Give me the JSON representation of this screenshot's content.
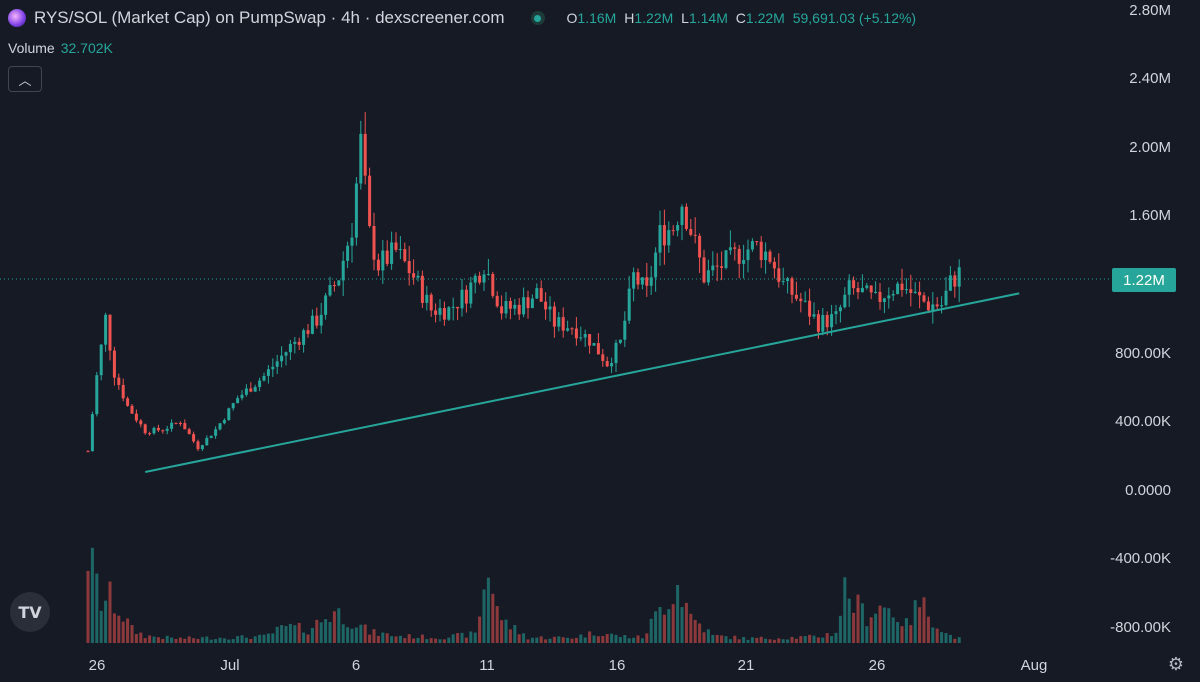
{
  "header": {
    "title": "RYS/SOL (Market Cap) on PumpSwap · 4h · dexscreener.com",
    "ohlc": [
      {
        "key": "O",
        "value": "1.16M"
      },
      {
        "key": "H",
        "value": "1.22M"
      },
      {
        "key": "L",
        "value": "1.14M"
      },
      {
        "key": "C",
        "value": "1.22M"
      }
    ],
    "change": "59,691.03 (+5.12%)"
  },
  "volume": {
    "label": "Volume",
    "value": "32.702K"
  },
  "icons": {
    "symbol": "rys-token-icon",
    "status": "live-dot-icon",
    "collapse": "chevron-up-icon",
    "logo": "tradingview-logo-icon",
    "settings": "gear-icon"
  },
  "colors": {
    "background": "#161a25",
    "up": "#26a69a",
    "down": "#ef5350",
    "trendline": "#26a69a",
    "price_tag": "#26a69a"
  },
  "chart_data": {
    "type": "candlestick",
    "interval": "4h",
    "y_axis": {
      "ticks": [
        "2.80M",
        "2.40M",
        "2.00M",
        "1.60M",
        "1.22M",
        "800.00K",
        "400.00K",
        "0.0000",
        "-400.00K",
        "-800.00K"
      ],
      "min": -900000,
      "max": 2800000
    },
    "x_axis": {
      "ticks": [
        "26",
        "Jul",
        "6",
        "11",
        "16",
        "21",
        "26",
        "Aug"
      ]
    },
    "last_price_label": "1.22M",
    "last_price": 1220000,
    "price_path": [
      [
        0,
        150000
      ],
      [
        2,
        600000
      ],
      [
        4,
        950000
      ],
      [
        6,
        620000
      ],
      [
        9,
        420000
      ],
      [
        13,
        270000
      ],
      [
        17,
        280000
      ],
      [
        21,
        330000
      ],
      [
        25,
        170000
      ],
      [
        29,
        280000
      ],
      [
        34,
        470000
      ],
      [
        40,
        600000
      ],
      [
        46,
        780000
      ],
      [
        52,
        940000
      ],
      [
        57,
        1200000
      ],
      [
        60,
        1500000
      ],
      [
        62,
        2000000
      ],
      [
        64,
        1450000
      ],
      [
        66,
        1270000
      ],
      [
        70,
        1350000
      ],
      [
        74,
        1200000
      ],
      [
        78,
        1000000
      ],
      [
        82,
        1000000
      ],
      [
        86,
        1100000
      ],
      [
        90,
        1280000
      ],
      [
        94,
        1000000
      ],
      [
        98,
        1020000
      ],
      [
        102,
        1100000
      ],
      [
        106,
        920000
      ],
      [
        110,
        900000
      ],
      [
        114,
        820000
      ],
      [
        118,
        680000
      ],
      [
        121,
        800000
      ],
      [
        124,
        1200000
      ],
      [
        127,
        1100000
      ],
      [
        130,
        1450000
      ],
      [
        133,
        1500000
      ],
      [
        135,
        1650000
      ],
      [
        137,
        1480000
      ],
      [
        140,
        1200000
      ],
      [
        143,
        1250000
      ],
      [
        146,
        1300000
      ],
      [
        149,
        1360000
      ],
      [
        152,
        1380000
      ],
      [
        155,
        1320000
      ],
      [
        158,
        1150000
      ],
      [
        162,
        1050000
      ],
      [
        166,
        920000
      ],
      [
        170,
        950000
      ],
      [
        173,
        1120000
      ],
      [
        176,
        1100000
      ],
      [
        179,
        1050000
      ],
      [
        182,
        1120000
      ],
      [
        185,
        1150000
      ],
      [
        188,
        1080000
      ],
      [
        191,
        1030000
      ],
      [
        194,
        1030000
      ],
      [
        196,
        1160000
      ],
      [
        198,
        1220000
      ]
    ],
    "volume_path": [
      [
        0,
        1.0
      ],
      [
        3,
        0.45
      ],
      [
        5,
        0.5
      ],
      [
        8,
        0.3
      ],
      [
        10,
        0.15
      ],
      [
        13,
        0.08
      ],
      [
        20,
        0.05
      ],
      [
        30,
        0.06
      ],
      [
        40,
        0.07
      ],
      [
        45,
        0.18
      ],
      [
        50,
        0.15
      ],
      [
        56,
        0.35
      ],
      [
        60,
        0.25
      ],
      [
        64,
        0.12
      ],
      [
        70,
        0.08
      ],
      [
        80,
        0.06
      ],
      [
        88,
        0.1
      ],
      [
        91,
        0.82
      ],
      [
        94,
        0.25
      ],
      [
        100,
        0.06
      ],
      [
        110,
        0.06
      ],
      [
        116,
        0.12
      ],
      [
        120,
        0.08
      ],
      [
        126,
        0.06
      ],
      [
        131,
        0.45
      ],
      [
        134,
        0.65
      ],
      [
        137,
        0.3
      ],
      [
        142,
        0.08
      ],
      [
        150,
        0.05
      ],
      [
        160,
        0.06
      ],
      [
        166,
        0.07
      ],
      [
        170,
        0.12
      ],
      [
        172,
        0.6
      ],
      [
        174,
        0.45
      ],
      [
        177,
        0.3
      ],
      [
        180,
        0.42
      ],
      [
        183,
        0.35
      ],
      [
        186,
        0.2
      ],
      [
        189,
        0.45
      ],
      [
        192,
        0.28
      ],
      [
        195,
        0.1
      ],
      [
        198,
        0.05
      ]
    ],
    "trendline": {
      "from": {
        "candle": 13,
        "value": 25000
      },
      "to": {
        "candle": 198,
        "value": 1050000
      }
    },
    "grid": false,
    "legend": "top-left"
  }
}
